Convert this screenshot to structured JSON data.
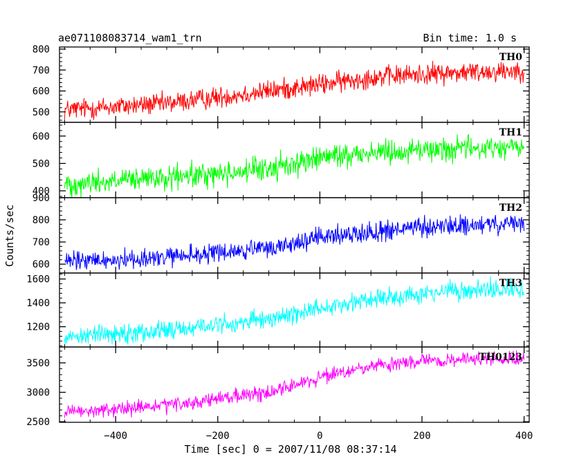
{
  "header": {
    "title": "ae071108083714_wam1_trn",
    "bin_time": "Bin time: 1.0 s"
  },
  "chart_data": {
    "type": "line",
    "xlabel": "Time [sec] 0 = 2007/11/08 08:37:14",
    "ylabel": "Counts/sec",
    "xlim": [
      -510,
      410
    ],
    "x_ticks": [
      -400,
      -200,
      0,
      200,
      400
    ],
    "x_tick_labels": [
      "−400",
      "−200",
      "0",
      "200",
      "400"
    ],
    "bin_time_s": 1.0,
    "panels": [
      {
        "name": "TH0",
        "color": "#ff0000",
        "ylim": [
          450,
          810
        ],
        "y_ticks": [
          500,
          600,
          700,
          800
        ],
        "y_tick_labels": [
          "500",
          "600",
          "700",
          "800"
        ],
        "trend": [
          [
            -500,
            510
          ],
          [
            -300,
            540
          ],
          [
            -100,
            600
          ],
          [
            0,
            630
          ],
          [
            100,
            665
          ],
          [
            200,
            680
          ],
          [
            300,
            690
          ],
          [
            400,
            700
          ]
        ],
        "noise": 25
      },
      {
        "name": "TH1",
        "color": "#00ff00",
        "ylim": [
          375,
          650
        ],
        "y_ticks": [
          400,
          500,
          600
        ],
        "y_tick_labels": [
          "400",
          "500",
          "600"
        ],
        "trend": [
          [
            -500,
            425
          ],
          [
            -300,
            445
          ],
          [
            -100,
            480
          ],
          [
            0,
            520
          ],
          [
            100,
            540
          ],
          [
            200,
            550
          ],
          [
            300,
            555
          ],
          [
            400,
            560
          ]
        ],
        "noise": 22
      },
      {
        "name": "TH2",
        "color": "#0000ff",
        "ylim": [
          560,
          900
        ],
        "y_ticks": [
          600,
          700,
          800,
          900
        ],
        "y_tick_labels": [
          "600",
          "700",
          "800",
          "900"
        ],
        "trend": [
          [
            -500,
            610
          ],
          [
            -300,
            630
          ],
          [
            -100,
            670
          ],
          [
            0,
            720
          ],
          [
            100,
            745
          ],
          [
            200,
            765
          ],
          [
            300,
            775
          ],
          [
            400,
            780
          ]
        ],
        "noise": 22
      },
      {
        "name": "TH3",
        "color": "#00ffff",
        "ylim": [
          1030,
          1650
        ],
        "y_ticks": [
          1200,
          1400,
          1600
        ],
        "y_tick_labels": [
          "1200",
          "1400",
          "1600"
        ],
        "trend": [
          [
            -500,
            1120
          ],
          [
            -300,
            1170
          ],
          [
            -100,
            1260
          ],
          [
            0,
            1360
          ],
          [
            100,
            1430
          ],
          [
            200,
            1480
          ],
          [
            300,
            1505
          ],
          [
            400,
            1510
          ]
        ],
        "noise": 40
      },
      {
        "name": "TH0123",
        "color": "#ff00ff",
        "ylim": [
          2490,
          3770
        ],
        "y_ticks": [
          2500,
          3000,
          3500
        ],
        "y_tick_labels": [
          "2500",
          "3000",
          "3500"
        ],
        "trend": [
          [
            -500,
            2650
          ],
          [
            -300,
            2770
          ],
          [
            -100,
            3000
          ],
          [
            0,
            3250
          ],
          [
            100,
            3430
          ],
          [
            200,
            3530
          ],
          [
            300,
            3560
          ],
          [
            400,
            3570
          ]
        ],
        "noise": 60
      }
    ]
  }
}
